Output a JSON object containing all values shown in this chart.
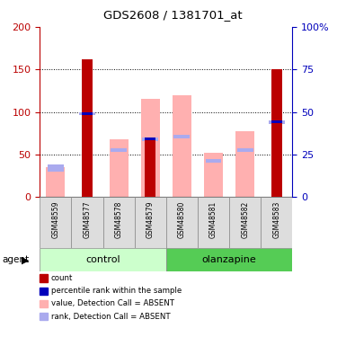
{
  "title": "GDS2608 / 1381701_at",
  "samples": [
    "GSM48559",
    "GSM48577",
    "GSM48578",
    "GSM48579",
    "GSM48580",
    "GSM48581",
    "GSM48582",
    "GSM48583"
  ],
  "pink_bar_height": [
    35,
    0,
    68,
    116,
    120,
    52,
    77,
    0
  ],
  "blue_light_top": [
    38,
    100,
    57,
    70,
    73,
    45,
    57,
    90
  ],
  "blue_light_bottom": [
    30,
    96,
    53,
    66,
    69,
    41,
    53,
    86
  ],
  "red_bar_height": [
    0,
    162,
    0,
    70,
    0,
    0,
    0,
    150
  ],
  "blue_dot_height": [
    0,
    100,
    0,
    70,
    0,
    0,
    0,
    90
  ],
  "blue_dot_bottom": [
    0,
    97,
    0,
    67,
    0,
    0,
    0,
    87
  ],
  "left_ylim": [
    0,
    200
  ],
  "right_ylim": [
    0,
    100
  ],
  "left_yticks": [
    0,
    50,
    100,
    150,
    200
  ],
  "right_yticks": [
    0,
    25,
    50,
    75,
    100
  ],
  "right_yticklabels": [
    "0",
    "25",
    "50",
    "75",
    "100%"
  ],
  "color_red": "#BB0000",
  "color_blue": "#0000BB",
  "color_pink": "#FFB0B0",
  "color_blue_light": "#AAAAEE",
  "color_group_control_light": "#CCFFCC",
  "color_group_olanzapine": "#55CC55",
  "color_label_bg": "#DDDDDD",
  "legend_items": [
    {
      "color": "#BB0000",
      "label": "count"
    },
    {
      "color": "#0000BB",
      "label": "percentile rank within the sample"
    },
    {
      "color": "#FFB0B0",
      "label": "value, Detection Call = ABSENT"
    },
    {
      "color": "#AAAAEE",
      "label": "rank, Detection Call = ABSENT"
    }
  ]
}
